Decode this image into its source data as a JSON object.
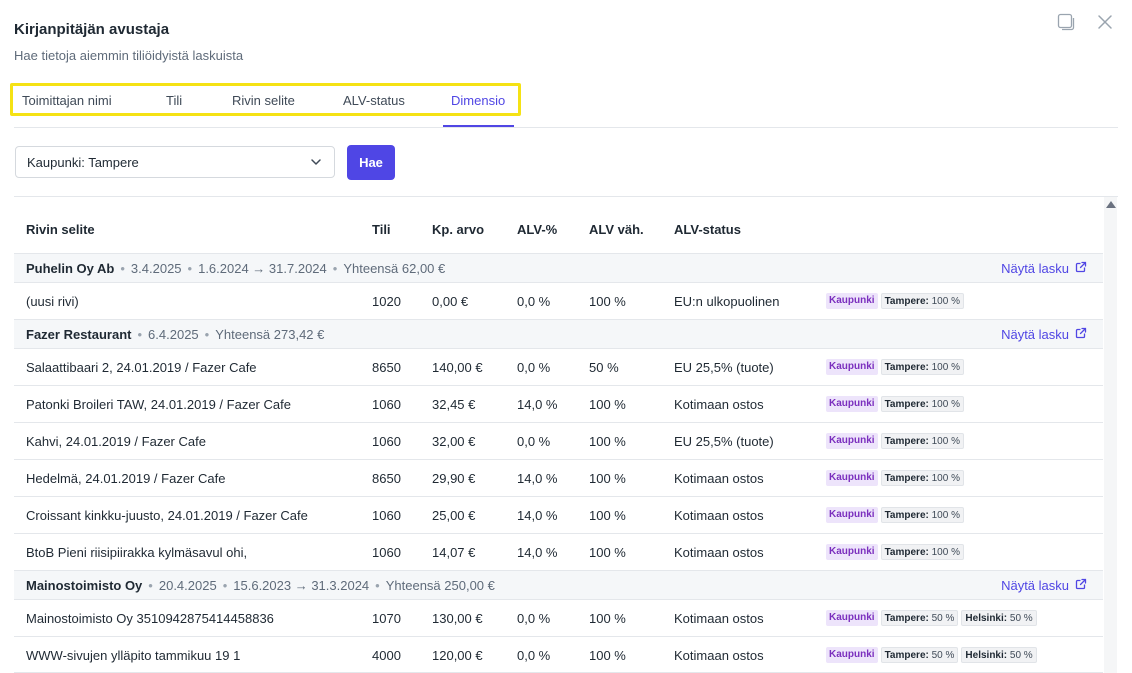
{
  "header": {
    "title": "Kirjanpitäjän avustaja",
    "subtitle": "Hae tietoja aiemmin tiliöidyistä laskuista"
  },
  "tabs": [
    {
      "label": "Toimittajan nimi"
    },
    {
      "label": "Tili"
    },
    {
      "label": "Rivin selite"
    },
    {
      "label": "ALV-status"
    },
    {
      "label": "Dimensio",
      "active": true
    }
  ],
  "filter": {
    "selected": "Kaupunki: Tampere",
    "search_button": "Hae"
  },
  "table": {
    "columns": [
      "Rivin selite",
      "Tili",
      "Kp. arvo",
      "ALV-%",
      "ALV väh.",
      "ALV-status"
    ],
    "link_label": "Näytä lasku",
    "tag_label": "Kaupunki",
    "groups": [
      {
        "name": "Puhelin Oy Ab",
        "meta": [
          "3.4.2025",
          "1.6.2024 → 31.7.2024",
          "Yhteensä 62,00 €"
        ],
        "rows": [
          {
            "desc": "(uusi rivi)",
            "tili": "1020",
            "kp": "0,00 €",
            "alv": "0,0 %",
            "vah": "100 %",
            "status": "EU:n ulkopuolinen",
            "dims": [
              {
                "k": "Tampere:",
                "v": "100 %"
              }
            ]
          }
        ]
      },
      {
        "name": "Fazer Restaurant",
        "meta": [
          "6.4.2025",
          "Yhteensä 273,42 €"
        ],
        "rows": [
          {
            "desc": "Salaattibaari 2, 24.01.2019 / Fazer Cafe",
            "tili": "8650",
            "kp": "140,00 €",
            "alv": "0,0 %",
            "vah": "50 %",
            "status": "EU 25,5% (tuote)",
            "dims": [
              {
                "k": "Tampere:",
                "v": "100 %"
              }
            ]
          },
          {
            "desc": "Patonki Broileri TAW, 24.01.2019 / Fazer Cafe",
            "tili": "1060",
            "kp": "32,45 €",
            "alv": "14,0 %",
            "vah": "100 %",
            "status": "Kotimaan ostos",
            "dims": [
              {
                "k": "Tampere:",
                "v": "100 %"
              }
            ]
          },
          {
            "desc": "Kahvi, 24.01.2019 / Fazer Cafe",
            "tili": "1060",
            "kp": "32,00 €",
            "alv": "0,0 %",
            "vah": "100 %",
            "status": "EU 25,5% (tuote)",
            "dims": [
              {
                "k": "Tampere:",
                "v": "100 %"
              }
            ]
          },
          {
            "desc": "Hedelmä, 24.01.2019 / Fazer Cafe",
            "tili": "8650",
            "kp": "29,90 €",
            "alv": "14,0 %",
            "vah": "100 %",
            "status": "Kotimaan ostos",
            "dims": [
              {
                "k": "Tampere:",
                "v": "100 %"
              }
            ]
          },
          {
            "desc": "Croissant kinkku-juusto, 24.01.2019 / Fazer Cafe",
            "tili": "1060",
            "kp": "25,00 €",
            "alv": "14,0 %",
            "vah": "100 %",
            "status": "Kotimaan ostos",
            "dims": [
              {
                "k": "Tampere:",
                "v": "100 %"
              }
            ]
          },
          {
            "desc": "BtoB Pieni riisipiirakka kylmäsavul ohi,",
            "tili": "1060",
            "kp": "14,07 €",
            "alv": "14,0 %",
            "vah": "100 %",
            "status": "Kotimaan ostos",
            "dims": [
              {
                "k": "Tampere:",
                "v": "100 %"
              }
            ]
          }
        ]
      },
      {
        "name": "Mainostoimisto Oy",
        "meta": [
          "20.4.2025",
          "15.6.2023 → 31.3.2024",
          "Yhteensä 250,00 €"
        ],
        "rows": [
          {
            "desc": "Mainostoimisto Oy 3510942875414458836",
            "tili": "1070",
            "kp": "130,00 €",
            "alv": "0,0 %",
            "vah": "100 %",
            "status": "Kotimaan ostos",
            "dims": [
              {
                "k": "Tampere:",
                "v": "50 %"
              },
              {
                "k": "Helsinki:",
                "v": "50 %"
              }
            ]
          },
          {
            "desc": "WWW-sivujen ylläpito tammikuu 19 1",
            "tili": "4000",
            "kp": "120,00 €",
            "alv": "0,0 %",
            "vah": "100 %",
            "status": "Kotimaan ostos",
            "dims": [
              {
                "k": "Tampere:",
                "v": "50 %"
              },
              {
                "k": "Helsinki:",
                "v": "50 %"
              }
            ]
          }
        ]
      }
    ]
  },
  "icons": {
    "restore": "restore-window-icon",
    "close": "close-icon",
    "chevron": "chevron-down-icon",
    "external": "external-link-icon"
  }
}
